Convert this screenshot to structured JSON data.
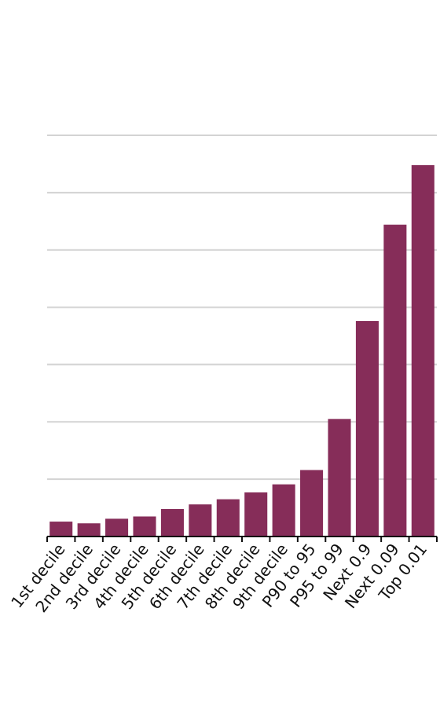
{
  "chart_data": {
    "type": "bar",
    "categories": [
      "1st decile",
      "2nd decile",
      "3rd decile",
      "4th decile",
      "5th decile",
      "6th decile",
      "7th decile",
      "8th decile",
      "9th decile",
      "P90 to 95",
      "P95 to 99",
      "Next 0.9",
      "Next 0.09",
      "Top 0.01"
    ],
    "values": [
      0.26,
      0.23,
      0.31,
      0.35,
      0.48,
      0.56,
      0.65,
      0.77,
      0.91,
      1.16,
      2.05,
      3.76,
      5.44,
      6.48
    ],
    "ylim": [
      0,
      7
    ],
    "grid": true,
    "bar_color": "#862d59",
    "grid_color": "#d3d3d3",
    "axis_color": "#111111"
  }
}
